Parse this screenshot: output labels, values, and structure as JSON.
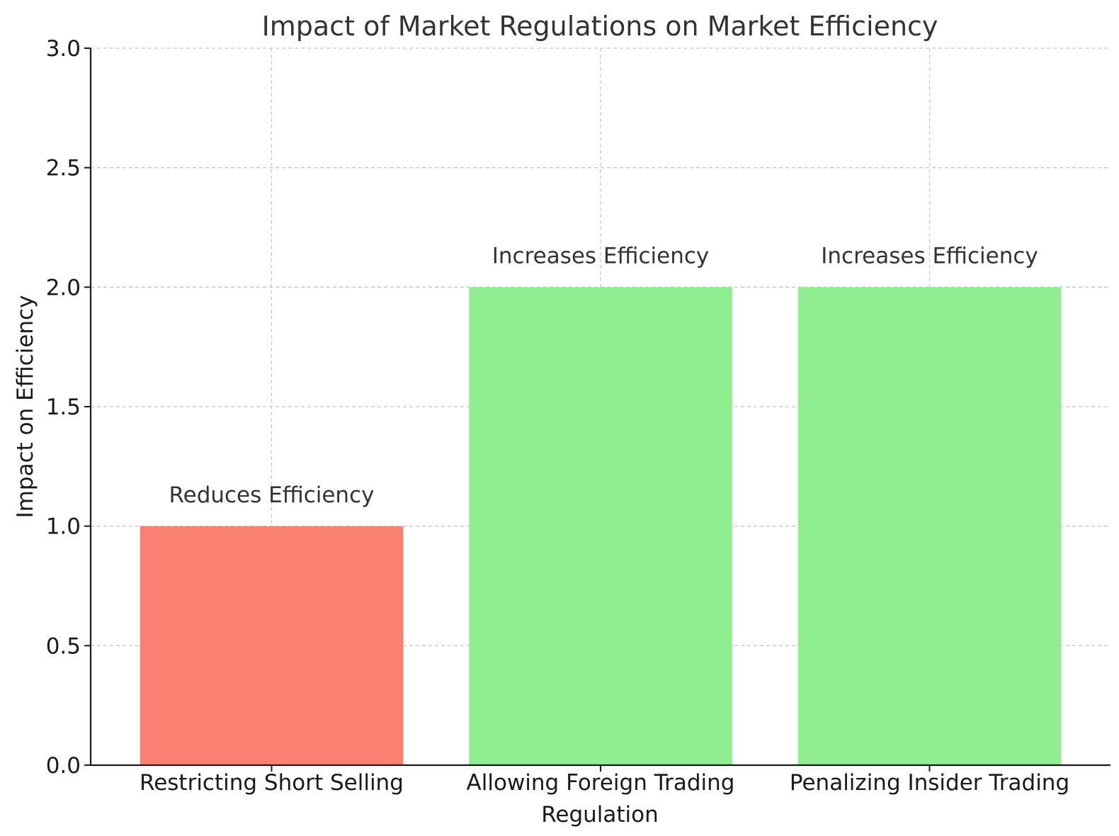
{
  "chart_data": {
    "type": "bar",
    "title": "Impact of Market Regulations on Market Efficiency",
    "xlabel": "Regulation",
    "ylabel": "Impact on Efficiency",
    "categories": [
      "Restricting Short Selling",
      "Allowing Foreign Trading",
      "Penalizing Insider Trading"
    ],
    "values": [
      1,
      2,
      2
    ],
    "annotations": [
      "Reduces Efficiency",
      "Increases Efficiency",
      "Increases Efficiency"
    ],
    "colors": [
      "#fa8072",
      "#90ee90",
      "#90ee90"
    ],
    "ylim": [
      0,
      3.0
    ],
    "yticks": [
      "0.0",
      "0.5",
      "1.0",
      "1.5",
      "2.0",
      "2.5",
      "3.0"
    ],
    "grid": true
  }
}
